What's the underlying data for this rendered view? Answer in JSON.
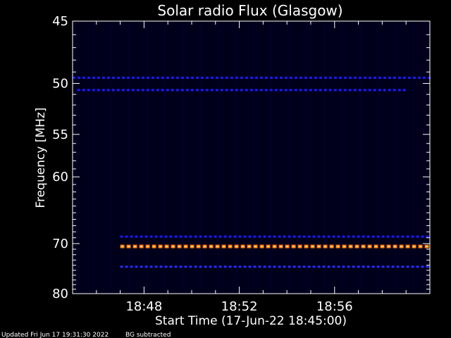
{
  "chart_data": {
    "type": "heatmap",
    "title": "Solar radio Flux (Glasgow)",
    "xlabel": "Start Time (17-Jun-22 18:45:00)",
    "ylabel": "Frequency [MHz]",
    "x_tick_labels": [
      "18:48",
      "18:52",
      "18:56"
    ],
    "x_tick_values": [
      3,
      7,
      11
    ],
    "xlim": [
      0,
      15
    ],
    "y_tick_labels": [
      "45",
      "50",
      "55",
      "60",
      "70",
      "80"
    ],
    "y_tick_values": [
      45,
      50,
      55,
      60,
      70,
      80
    ],
    "ylim": [
      80,
      45
    ],
    "y_scale": "reciprocal",
    "emission_bands": [
      {
        "frequency_mhz": 49.5,
        "start_min": 0,
        "end_min": 15,
        "color": "#1a1aff"
      },
      {
        "frequency_mhz": 50.6,
        "start_min": 0.2,
        "end_min": 14,
        "color": "#1a1aff"
      },
      {
        "frequency_mhz": 68.8,
        "start_min": 2,
        "end_min": 15,
        "color": "#1a1aff"
      },
      {
        "frequency_mhz": 70.5,
        "start_min": 2,
        "end_min": 15,
        "color": "#ff7a00"
      },
      {
        "frequency_mhz": 74.3,
        "start_min": 2,
        "end_min": 15,
        "color": "#2a2aff"
      }
    ]
  },
  "footer": {
    "updated": "Updated Fri Jun 17 19:31:30 2022",
    "note": "BG subtracted"
  },
  "colors": {
    "background": "#000000",
    "plot_background": "#00001a",
    "axis": "#ffffff",
    "emission_low": "#1a1aff",
    "emission_high": "#ff7a00"
  }
}
